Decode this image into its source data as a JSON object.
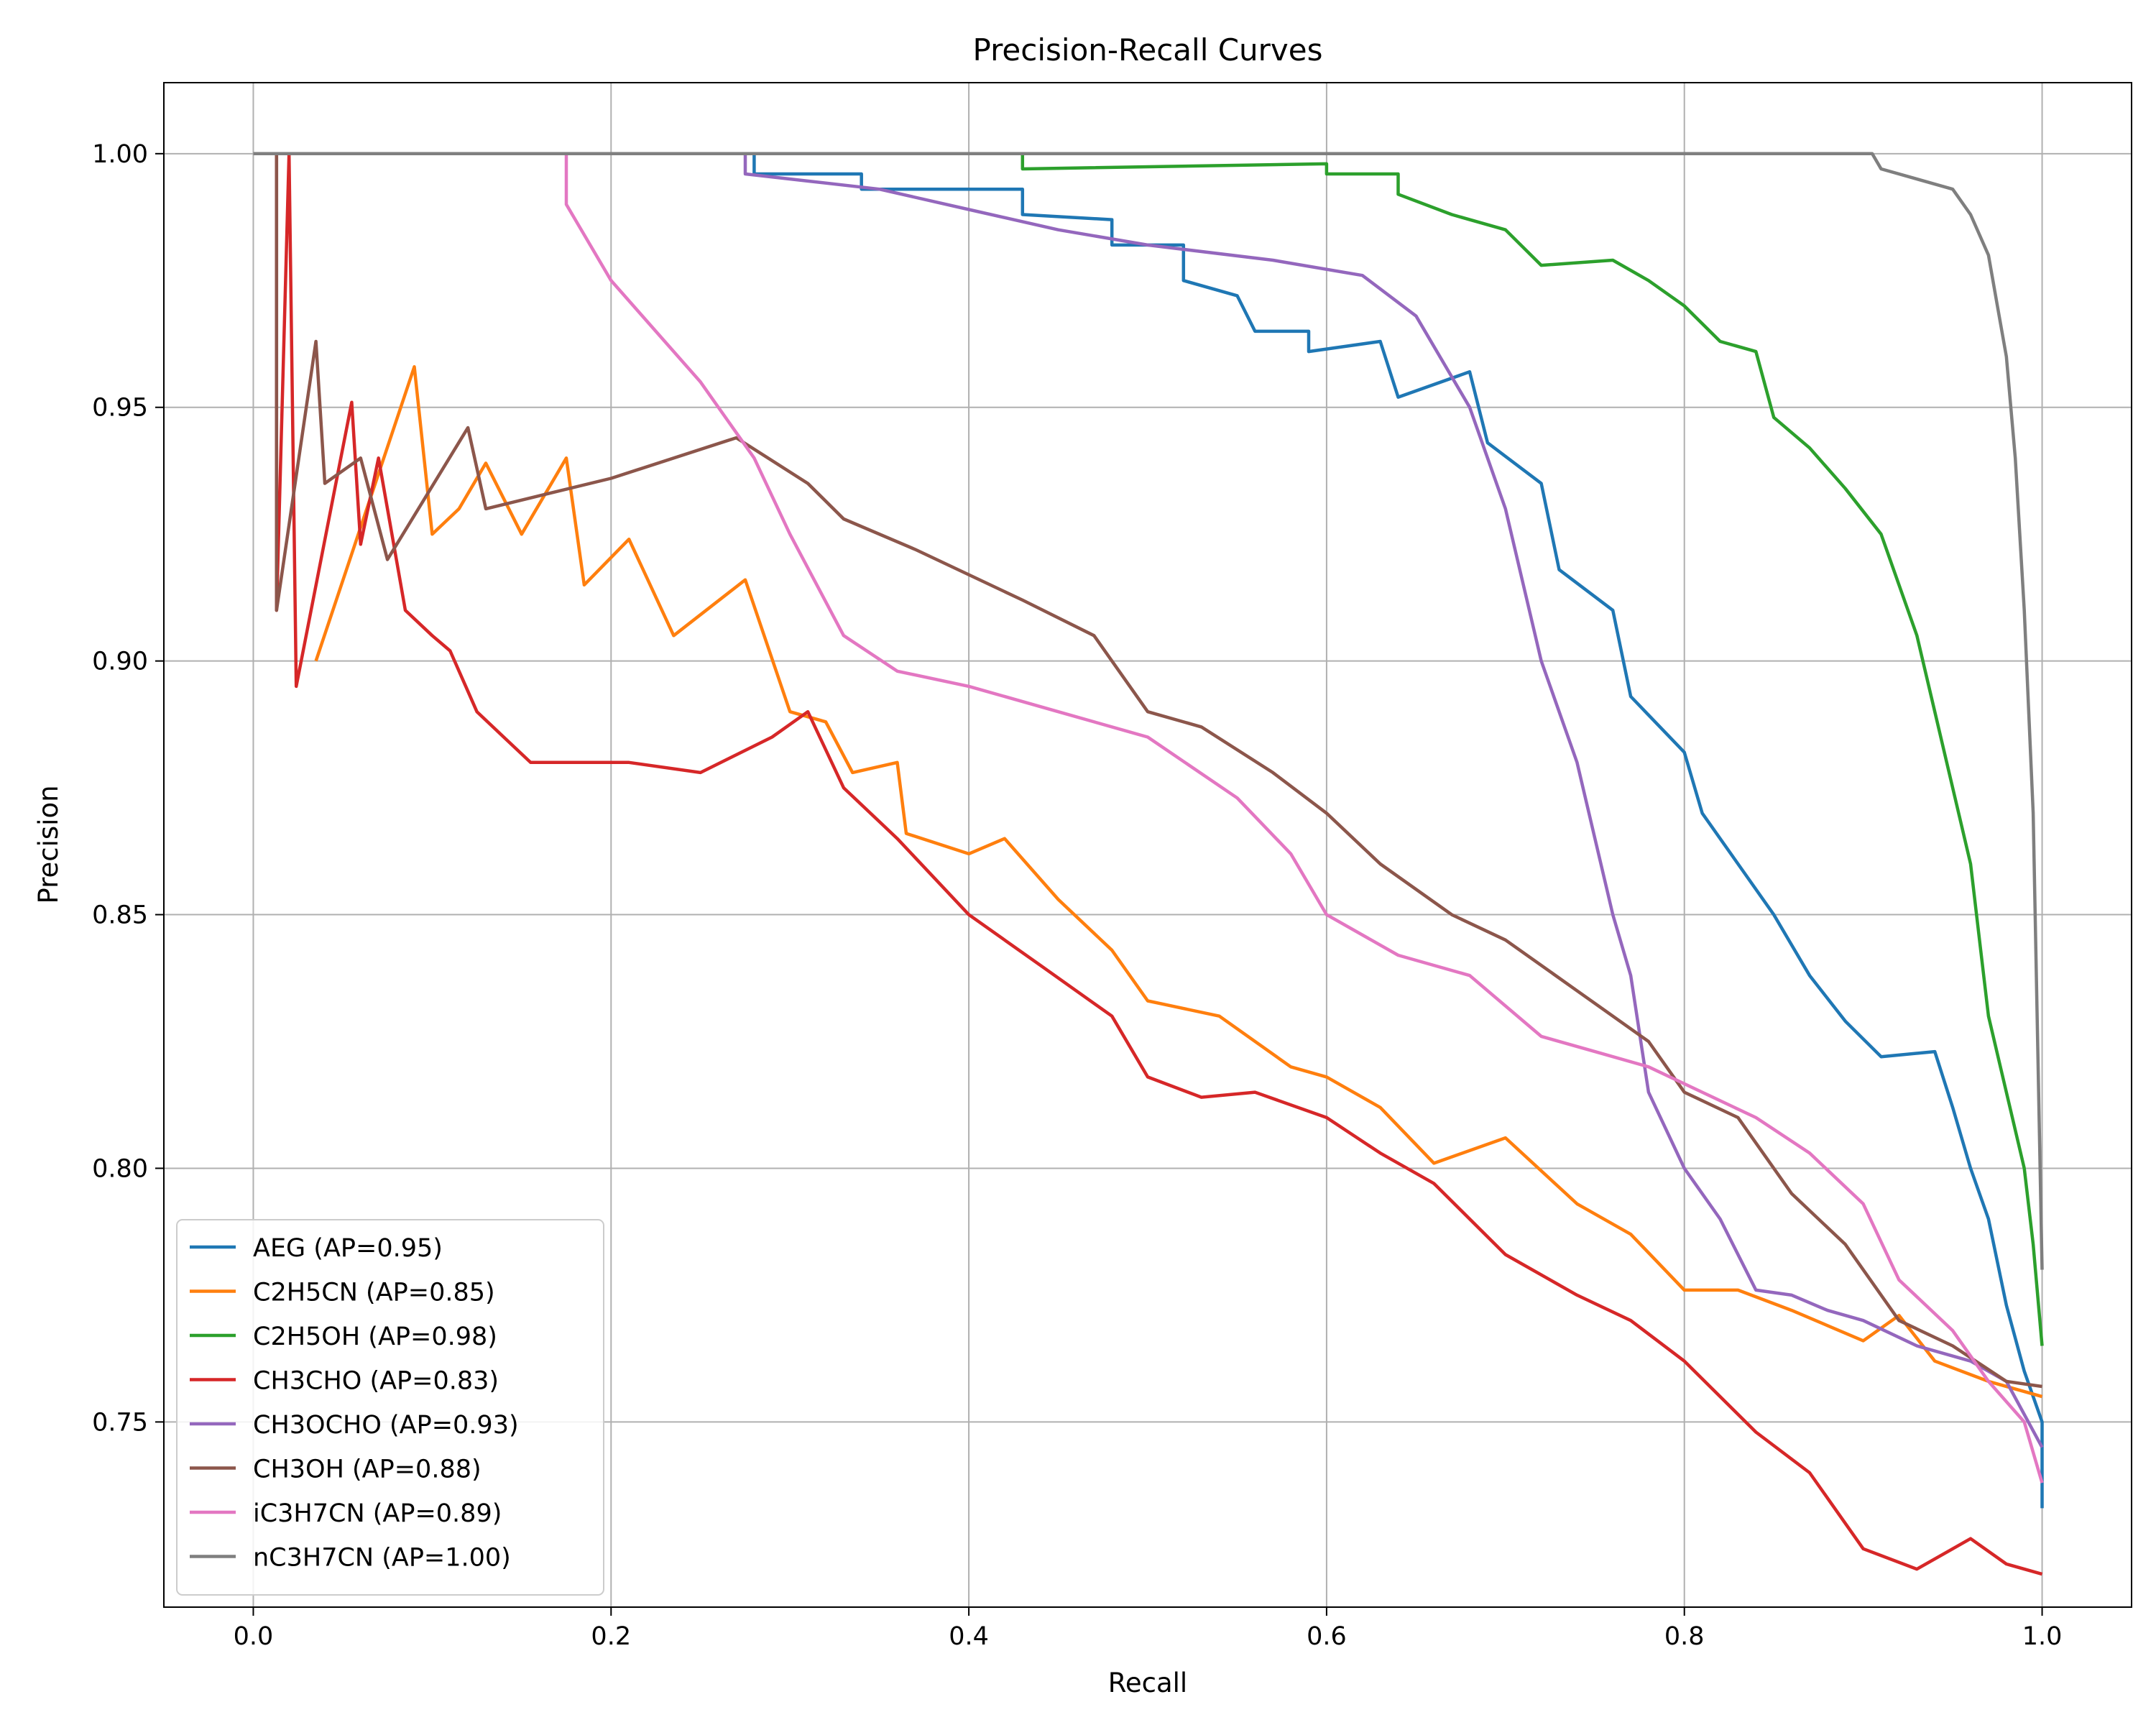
{
  "chart_data": {
    "type": "line",
    "title": "Precision-Recall Curves",
    "xlabel": "Recall",
    "ylabel": "Precision",
    "xlim": [
      -0.05,
      1.05
    ],
    "ylim": [
      0.7135,
      1.014
    ],
    "grid": true,
    "legend_position": "lower-left",
    "xticks": [
      "0.0",
      "0.2",
      "0.4",
      "0.6",
      "0.8",
      "1.0"
    ],
    "yticks": [
      "0.75",
      "0.80",
      "0.85",
      "0.90",
      "0.95",
      "1.00"
    ],
    "series": [
      {
        "name": "AEG (AP=0.95)",
        "color": "#1f77b4",
        "points": [
          [
            0.0,
            1.0
          ],
          [
            0.28,
            1.0
          ],
          [
            0.28,
            0.996
          ],
          [
            0.34,
            0.996
          ],
          [
            0.34,
            0.993
          ],
          [
            0.43,
            0.993
          ],
          [
            0.43,
            0.988
          ],
          [
            0.48,
            0.987
          ],
          [
            0.48,
            0.982
          ],
          [
            0.52,
            0.982
          ],
          [
            0.52,
            0.975
          ],
          [
            0.55,
            0.972
          ],
          [
            0.56,
            0.965
          ],
          [
            0.59,
            0.965
          ],
          [
            0.59,
            0.961
          ],
          [
            0.63,
            0.963
          ],
          [
            0.64,
            0.952
          ],
          [
            0.68,
            0.957
          ],
          [
            0.69,
            0.943
          ],
          [
            0.72,
            0.935
          ],
          [
            0.73,
            0.918
          ],
          [
            0.76,
            0.91
          ],
          [
            0.77,
            0.893
          ],
          [
            0.8,
            0.882
          ],
          [
            0.81,
            0.87
          ],
          [
            0.83,
            0.86
          ],
          [
            0.85,
            0.85
          ],
          [
            0.87,
            0.838
          ],
          [
            0.89,
            0.829
          ],
          [
            0.91,
            0.822
          ],
          [
            0.94,
            0.823
          ],
          [
            0.95,
            0.812
          ],
          [
            0.96,
            0.8
          ],
          [
            0.97,
            0.79
          ],
          [
            0.98,
            0.773
          ],
          [
            0.99,
            0.76
          ],
          [
            1.0,
            0.75
          ],
          [
            1.0,
            0.733
          ]
        ]
      },
      {
        "name": "C2H5CN (AP=0.85)",
        "color": "#ff7f0e",
        "points": [
          [
            0.035,
            0.9
          ],
          [
            0.09,
            0.958
          ],
          [
            0.1,
            0.925
          ],
          [
            0.115,
            0.93
          ],
          [
            0.13,
            0.939
          ],
          [
            0.15,
            0.925
          ],
          [
            0.175,
            0.94
          ],
          [
            0.185,
            0.915
          ],
          [
            0.21,
            0.924
          ],
          [
            0.235,
            0.905
          ],
          [
            0.275,
            0.916
          ],
          [
            0.3,
            0.89
          ],
          [
            0.32,
            0.888
          ],
          [
            0.335,
            0.878
          ],
          [
            0.36,
            0.88
          ],
          [
            0.365,
            0.866
          ],
          [
            0.4,
            0.862
          ],
          [
            0.42,
            0.865
          ],
          [
            0.45,
            0.853
          ],
          [
            0.48,
            0.843
          ],
          [
            0.5,
            0.833
          ],
          [
            0.54,
            0.83
          ],
          [
            0.58,
            0.82
          ],
          [
            0.6,
            0.818
          ],
          [
            0.63,
            0.812
          ],
          [
            0.66,
            0.801
          ],
          [
            0.7,
            0.806
          ],
          [
            0.74,
            0.793
          ],
          [
            0.77,
            0.787
          ],
          [
            0.8,
            0.776
          ],
          [
            0.83,
            0.776
          ],
          [
            0.86,
            0.772
          ],
          [
            0.9,
            0.766
          ],
          [
            0.92,
            0.771
          ],
          [
            0.94,
            0.762
          ],
          [
            0.97,
            0.758
          ],
          [
            1.0,
            0.755
          ]
        ]
      },
      {
        "name": "C2H5OH (AP=0.98)",
        "color": "#2ca02c",
        "points": [
          [
            0.0,
            1.0
          ],
          [
            0.43,
            1.0
          ],
          [
            0.43,
            0.997
          ],
          [
            0.6,
            0.998
          ],
          [
            0.6,
            0.996
          ],
          [
            0.64,
            0.996
          ],
          [
            0.64,
            0.992
          ],
          [
            0.67,
            0.988
          ],
          [
            0.7,
            0.985
          ],
          [
            0.72,
            0.978
          ],
          [
            0.76,
            0.979
          ],
          [
            0.78,
            0.975
          ],
          [
            0.8,
            0.97
          ],
          [
            0.82,
            0.963
          ],
          [
            0.84,
            0.961
          ],
          [
            0.85,
            0.948
          ],
          [
            0.87,
            0.942
          ],
          [
            0.89,
            0.934
          ],
          [
            0.91,
            0.925
          ],
          [
            0.92,
            0.915
          ],
          [
            0.93,
            0.905
          ],
          [
            0.94,
            0.89
          ],
          [
            0.95,
            0.875
          ],
          [
            0.96,
            0.86
          ],
          [
            0.965,
            0.845
          ],
          [
            0.97,
            0.83
          ],
          [
            0.98,
            0.815
          ],
          [
            0.99,
            0.8
          ],
          [
            0.995,
            0.785
          ],
          [
            1.0,
            0.765
          ]
        ]
      },
      {
        "name": "CH3CHO (AP=0.83)",
        "color": "#d62728",
        "points": [
          [
            0.013,
            1.0
          ],
          [
            0.013,
            0.91
          ],
          [
            0.02,
            1.0
          ],
          [
            0.024,
            0.895
          ],
          [
            0.055,
            0.951
          ],
          [
            0.06,
            0.923
          ],
          [
            0.07,
            0.94
          ],
          [
            0.085,
            0.91
          ],
          [
            0.1,
            0.905
          ],
          [
            0.11,
            0.902
          ],
          [
            0.125,
            0.89
          ],
          [
            0.14,
            0.885
          ],
          [
            0.155,
            0.88
          ],
          [
            0.18,
            0.88
          ],
          [
            0.21,
            0.88
          ],
          [
            0.25,
            0.878
          ],
          [
            0.29,
            0.885
          ],
          [
            0.31,
            0.89
          ],
          [
            0.33,
            0.875
          ],
          [
            0.36,
            0.865
          ],
          [
            0.4,
            0.85
          ],
          [
            0.44,
            0.84
          ],
          [
            0.48,
            0.83
          ],
          [
            0.5,
            0.818
          ],
          [
            0.53,
            0.814
          ],
          [
            0.56,
            0.815
          ],
          [
            0.6,
            0.81
          ],
          [
            0.63,
            0.803
          ],
          [
            0.66,
            0.797
          ],
          [
            0.7,
            0.783
          ],
          [
            0.74,
            0.775
          ],
          [
            0.77,
            0.77
          ],
          [
            0.8,
            0.762
          ],
          [
            0.84,
            0.748
          ],
          [
            0.87,
            0.74
          ],
          [
            0.9,
            0.725
          ],
          [
            0.93,
            0.721
          ],
          [
            0.96,
            0.727
          ],
          [
            0.98,
            0.722
          ],
          [
            1.0,
            0.72
          ]
        ]
      },
      {
        "name": "CH3OCHO (AP=0.93)",
        "color": "#9467bd",
        "points": [
          [
            0.0,
            1.0
          ],
          [
            0.275,
            1.0
          ],
          [
            0.275,
            0.996
          ],
          [
            0.35,
            0.993
          ],
          [
            0.4,
            0.989
          ],
          [
            0.45,
            0.985
          ],
          [
            0.5,
            0.982
          ],
          [
            0.57,
            0.979
          ],
          [
            0.62,
            0.976
          ],
          [
            0.65,
            0.968
          ],
          [
            0.68,
            0.95
          ],
          [
            0.7,
            0.93
          ],
          [
            0.72,
            0.9
          ],
          [
            0.74,
            0.88
          ],
          [
            0.76,
            0.85
          ],
          [
            0.77,
            0.838
          ],
          [
            0.78,
            0.815
          ],
          [
            0.8,
            0.8
          ],
          [
            0.82,
            0.79
          ],
          [
            0.84,
            0.776
          ],
          [
            0.86,
            0.775
          ],
          [
            0.88,
            0.772
          ],
          [
            0.9,
            0.77
          ],
          [
            0.93,
            0.765
          ],
          [
            0.96,
            0.762
          ],
          [
            0.98,
            0.758
          ],
          [
            1.0,
            0.745
          ]
        ]
      },
      {
        "name": "CH3OH (AP=0.88)",
        "color": "#8c564b",
        "points": [
          [
            0.013,
            1.0
          ],
          [
            0.013,
            0.91
          ],
          [
            0.035,
            0.963
          ],
          [
            0.04,
            0.935
          ],
          [
            0.06,
            0.94
          ],
          [
            0.075,
            0.92
          ],
          [
            0.12,
            0.946
          ],
          [
            0.13,
            0.93
          ],
          [
            0.2,
            0.936
          ],
          [
            0.27,
            0.944
          ],
          [
            0.31,
            0.935
          ],
          [
            0.33,
            0.928
          ],
          [
            0.37,
            0.922
          ],
          [
            0.4,
            0.917
          ],
          [
            0.43,
            0.912
          ],
          [
            0.47,
            0.905
          ],
          [
            0.5,
            0.89
          ],
          [
            0.53,
            0.887
          ],
          [
            0.57,
            0.878
          ],
          [
            0.6,
            0.87
          ],
          [
            0.63,
            0.86
          ],
          [
            0.67,
            0.85
          ],
          [
            0.7,
            0.845
          ],
          [
            0.74,
            0.835
          ],
          [
            0.78,
            0.825
          ],
          [
            0.8,
            0.815
          ],
          [
            0.83,
            0.81
          ],
          [
            0.86,
            0.795
          ],
          [
            0.89,
            0.785
          ],
          [
            0.92,
            0.77
          ],
          [
            0.95,
            0.765
          ],
          [
            0.98,
            0.758
          ],
          [
            1.0,
            0.757
          ]
        ]
      },
      {
        "name": "iC3H7CN (AP=0.89)",
        "color": "#e377c2",
        "points": [
          [
            0.175,
            1.0
          ],
          [
            0.175,
            0.99
          ],
          [
            0.2,
            0.975
          ],
          [
            0.25,
            0.955
          ],
          [
            0.28,
            0.94
          ],
          [
            0.3,
            0.925
          ],
          [
            0.33,
            0.905
          ],
          [
            0.36,
            0.898
          ],
          [
            0.4,
            0.895
          ],
          [
            0.45,
            0.89
          ],
          [
            0.5,
            0.885
          ],
          [
            0.55,
            0.873
          ],
          [
            0.58,
            0.862
          ],
          [
            0.6,
            0.85
          ],
          [
            0.64,
            0.842
          ],
          [
            0.68,
            0.838
          ],
          [
            0.72,
            0.826
          ],
          [
            0.75,
            0.823
          ],
          [
            0.78,
            0.82
          ],
          [
            0.81,
            0.815
          ],
          [
            0.84,
            0.81
          ],
          [
            0.87,
            0.803
          ],
          [
            0.9,
            0.793
          ],
          [
            0.92,
            0.778
          ],
          [
            0.95,
            0.768
          ],
          [
            0.97,
            0.758
          ],
          [
            0.99,
            0.75
          ],
          [
            1.0,
            0.738
          ]
        ]
      },
      {
        "name": "nC3H7CN (AP=1.00)",
        "color": "#7f7f7f",
        "points": [
          [
            0.0,
            1.0
          ],
          [
            0.905,
            1.0
          ],
          [
            0.91,
            0.997
          ],
          [
            0.93,
            0.995
          ],
          [
            0.95,
            0.993
          ],
          [
            0.96,
            0.988
          ],
          [
            0.97,
            0.98
          ],
          [
            0.975,
            0.97
          ],
          [
            0.98,
            0.96
          ],
          [
            0.985,
            0.94
          ],
          [
            0.99,
            0.91
          ],
          [
            0.995,
            0.87
          ],
          [
            1.0,
            0.78
          ]
        ]
      }
    ]
  }
}
